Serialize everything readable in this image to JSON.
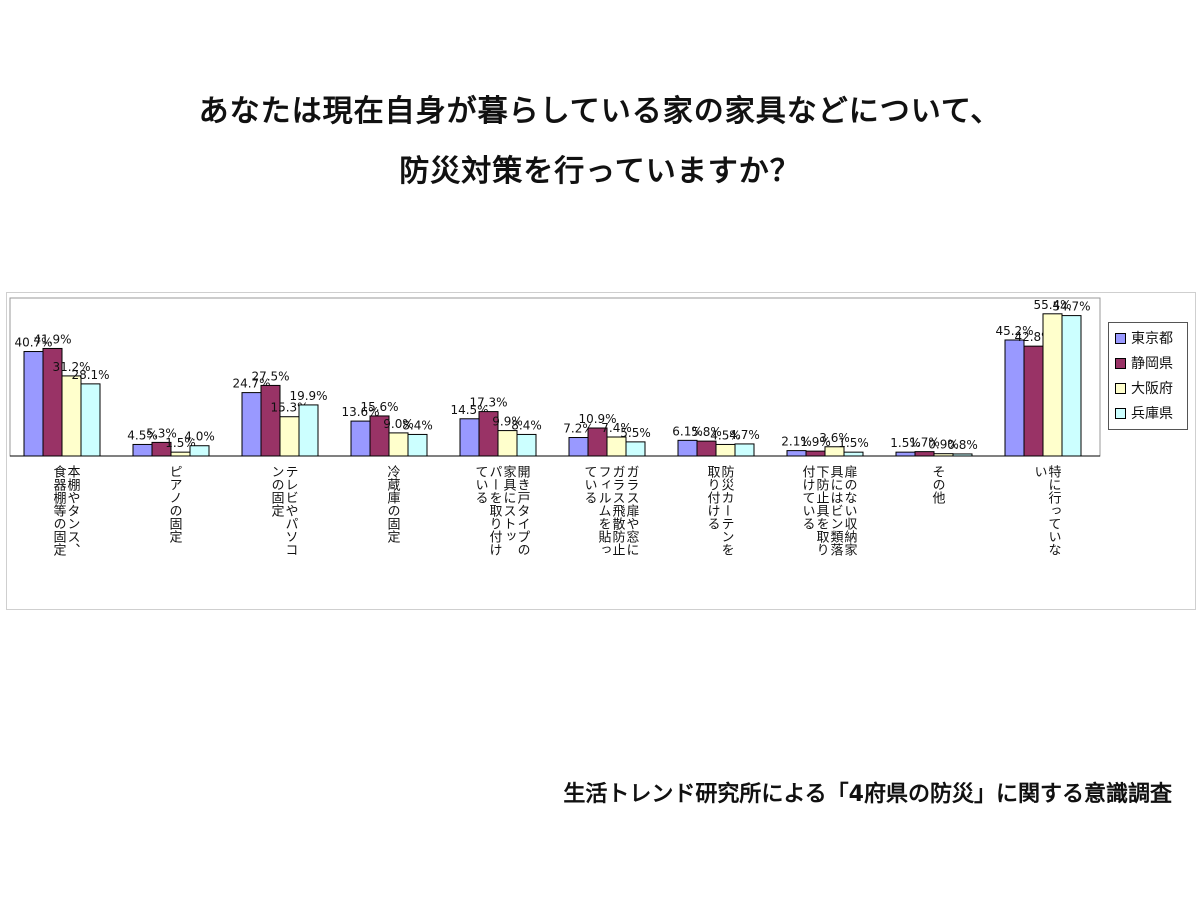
{
  "title_line1": "あなたは現在自身が暮らしている家の家具などについて、",
  "title_line2": "防災対策を行っていますか？",
  "footer": "生活トレンド研究所による「4府県の防災」に関する意識調査",
  "chart_data": {
    "type": "bar",
    "ylim": [
      0,
      60
    ],
    "grid": false,
    "legend_position": "right",
    "categories": [
      "本棚やタンス、\n食器棚等の固定",
      "ピアノの固定",
      "テレビやパソコ\nンの固定",
      "冷蔵庫の固定",
      "開き戸タイプの\n家具にストッ\nパーを取り付け\nている",
      "ガラス扉や窓に\nガラス飛散防止\nフィルムを貼っ\nている",
      "防災カーテンを\n取り付ける",
      "扉のない収納家\n具にはビン類落\n下防止具を取り\n付けている",
      "その他",
      "特に行っていな\nい"
    ],
    "series": [
      {
        "name": "東京都",
        "color": "#9999ff",
        "values": [
          40.7,
          4.5,
          24.7,
          13.6,
          14.5,
          7.2,
          6.1,
          2.1,
          1.5,
          45.2
        ]
      },
      {
        "name": "静岡県",
        "color": "#993366",
        "values": [
          41.9,
          5.3,
          27.5,
          15.6,
          17.3,
          10.9,
          5.8,
          1.9,
          1.7,
          42.8
        ]
      },
      {
        "name": "大阪府",
        "color": "#ffffcc",
        "values": [
          31.2,
          1.5,
          15.3,
          9.0,
          9.9,
          7.4,
          4.5,
          3.6,
          0.9,
          55.4
        ]
      },
      {
        "name": "兵庫県",
        "color": "#ccffff",
        "values": [
          28.1,
          4.0,
          19.9,
          8.4,
          8.4,
          5.5,
          4.7,
          1.5,
          0.8,
          54.7
        ]
      }
    ]
  }
}
